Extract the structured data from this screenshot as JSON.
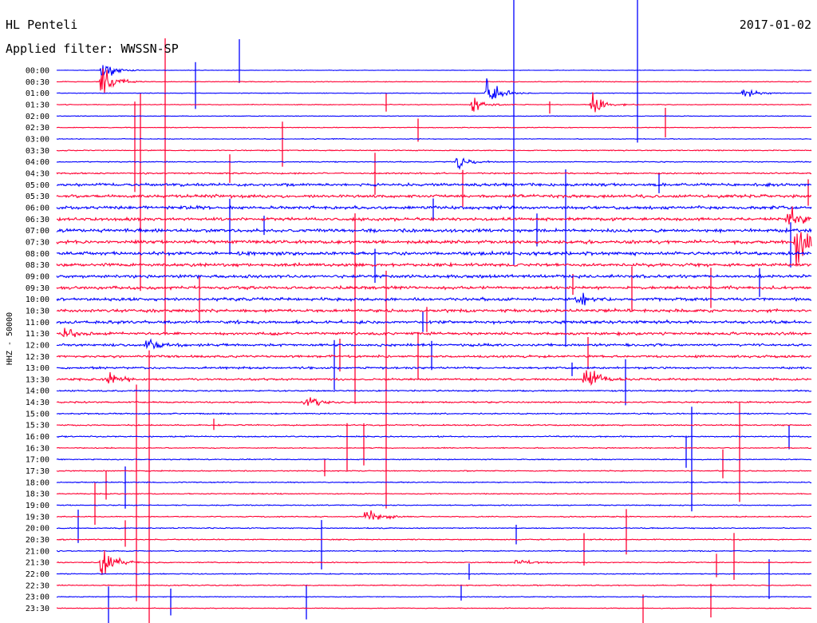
{
  "header": {
    "station": "HL Penteli",
    "filter_label": "Applied filter: WWSSN-SP",
    "date": "2017-01-02"
  },
  "colors": {
    "trace_a": "#0000ff",
    "trace_b": "#ff0033",
    "background": "#ffffff",
    "text": "#000000"
  },
  "chart_data": {
    "type": "line",
    "title": "",
    "xlabel": "",
    "ylabel": "HHZ - 50000",
    "grid": false,
    "legend": "none",
    "categories": [
      "00:00",
      "00:30",
      "01:00",
      "01:30",
      "02:00",
      "02:30",
      "03:00",
      "03:30",
      "04:00",
      "04:30",
      "05:00",
      "05:30",
      "06:00",
      "06:30",
      "07:00",
      "07:30",
      "08:00",
      "08:30",
      "09:00",
      "09:30",
      "10:00",
      "10:30",
      "11:00",
      "11:30",
      "12:00",
      "12:30",
      "13:00",
      "13:30",
      "14:00",
      "14:30",
      "15:00",
      "15:30",
      "16:00",
      "16:30",
      "17:00",
      "17:30",
      "18:00",
      "18:30",
      "19:00",
      "19:30",
      "20:00",
      "20:30",
      "21:00",
      "21:30",
      "22:00",
      "22:30",
      "23:00",
      "23:30"
    ],
    "noise_level": [
      0.2,
      0.3,
      0.25,
      0.3,
      0.25,
      0.3,
      0.3,
      0.4,
      0.4,
      0.6,
      1.1,
      1.2,
      1.2,
      1.2,
      1.3,
      1.3,
      1.3,
      1.2,
      1.2,
      1.2,
      1.2,
      1.2,
      1.2,
      1.1,
      1.0,
      0.9,
      0.8,
      0.8,
      0.6,
      0.6,
      0.5,
      0.5,
      0.5,
      0.4,
      0.4,
      0.4,
      0.4,
      0.4,
      0.4,
      0.4,
      0.4,
      0.4,
      0.4,
      0.4,
      0.4,
      0.4,
      0.3,
      0.3
    ],
    "events": [
      {
        "line": 0,
        "position": 0.06,
        "amplitude": 1.0
      },
      {
        "line": 1,
        "position": 0.06,
        "amplitude": 2.0
      },
      {
        "line": 2,
        "position": 0.57,
        "amplitude": 1.6
      },
      {
        "line": 2,
        "position": 0.91,
        "amplitude": 0.6
      },
      {
        "line": 3,
        "position": 0.55,
        "amplitude": 0.8
      },
      {
        "line": 3,
        "position": 0.71,
        "amplitude": 1.2
      },
      {
        "line": 8,
        "position": 0.53,
        "amplitude": 0.8
      },
      {
        "line": 13,
        "position": 0.97,
        "amplitude": 1.2
      },
      {
        "line": 15,
        "position": 0.98,
        "amplitude": 2.2
      },
      {
        "line": 20,
        "position": 0.69,
        "amplitude": 0.9
      },
      {
        "line": 23,
        "position": 0.01,
        "amplitude": 0.7
      },
      {
        "line": 24,
        "position": 0.12,
        "amplitude": 0.6
      },
      {
        "line": 27,
        "position": 0.07,
        "amplitude": 0.8
      },
      {
        "line": 27,
        "position": 0.7,
        "amplitude": 1.6
      },
      {
        "line": 29,
        "position": 0.33,
        "amplitude": 0.8
      },
      {
        "line": 39,
        "position": 0.41,
        "amplitude": 1.1
      },
      {
        "line": 43,
        "position": 0.06,
        "amplitude": 2.0
      },
      {
        "line": 43,
        "position": 0.61,
        "amplitude": 0.5
      }
    ]
  }
}
